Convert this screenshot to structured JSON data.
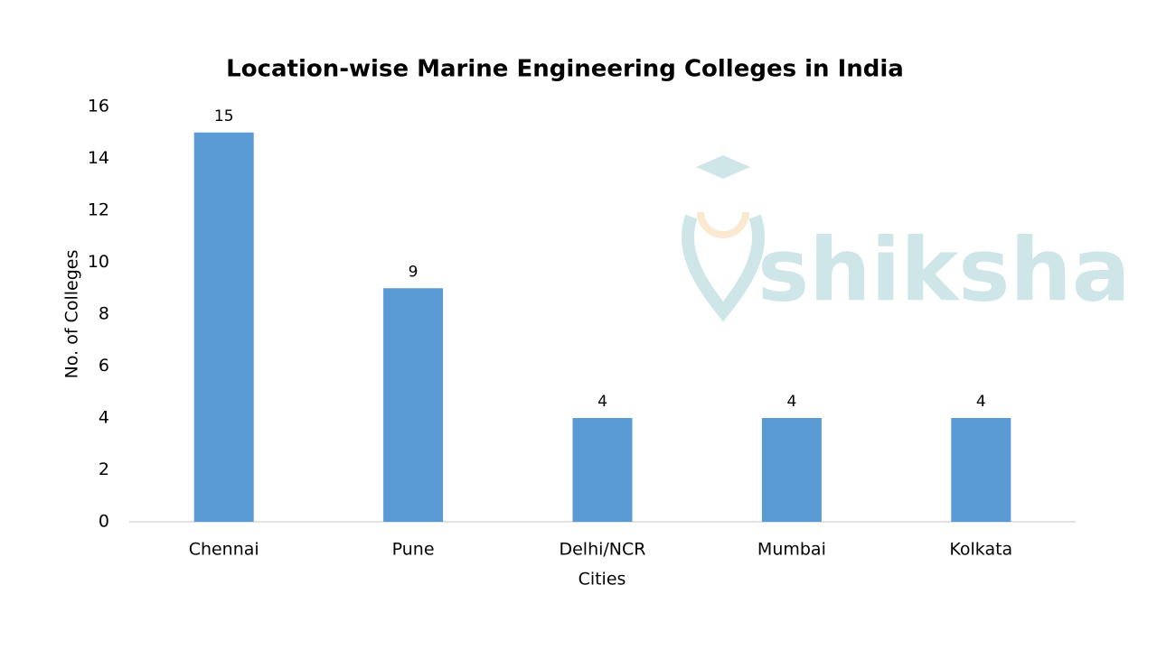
{
  "chart_data": {
    "type": "bar",
    "title": "Location-wise Marine Engineering Colleges in India",
    "x_label": "Cities",
    "y_label": "No. of Colleges",
    "categories": [
      "Chennai",
      "Pune",
      "Delhi/NCR",
      "Mumbai",
      "Kolkata"
    ],
    "values": [
      15,
      9,
      4,
      4,
      4
    ],
    "color": "#5b9bd5",
    "ylim": [
      0,
      16
    ],
    "yticks": [
      0,
      2,
      4,
      6,
      8,
      10,
      12,
      14,
      16
    ],
    "grid": false,
    "data_labels": true,
    "watermark": "shiksha"
  }
}
